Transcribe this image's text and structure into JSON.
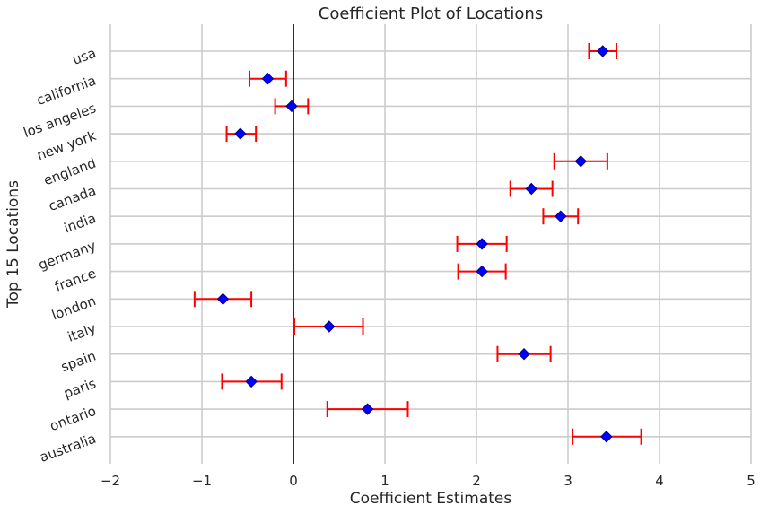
{
  "chart_data": {
    "type": "scatter",
    "title": "Coefficient Plot of Locations",
    "xlabel": "Coefficient Estimates",
    "ylabel": "Top 15 Locations",
    "xlim": [
      -2,
      5
    ],
    "xticks": [
      -2,
      -1,
      0,
      1,
      2,
      3,
      4,
      5
    ],
    "xtick_labels": [
      "−2",
      "−1",
      "0",
      "1",
      "2",
      "3",
      "4",
      "5"
    ],
    "grid": true,
    "reference_line_x": 0,
    "categories": [
      "usa",
      "california",
      "los angeles",
      "new york",
      "england",
      "canada",
      "india",
      "germany",
      "france",
      "london",
      "italy",
      "spain",
      "paris",
      "ontario",
      "australia"
    ],
    "estimates": [
      3.38,
      -0.28,
      -0.02,
      -0.58,
      3.14,
      2.6,
      2.92,
      2.06,
      2.06,
      -0.77,
      0.39,
      2.52,
      -0.46,
      0.81,
      3.42
    ],
    "ci_low": [
      3.23,
      -0.48,
      -0.2,
      -0.73,
      2.85,
      2.37,
      2.73,
      1.79,
      1.8,
      -1.08,
      0.01,
      2.23,
      -0.78,
      0.37,
      3.05
    ],
    "ci_high": [
      3.53,
      -0.08,
      0.16,
      -0.41,
      3.43,
      2.83,
      3.11,
      2.33,
      2.32,
      -0.46,
      0.76,
      2.81,
      -0.13,
      1.25,
      3.8
    ],
    "marker_color": "#0000ff",
    "marker_edge_color": "#000080",
    "errorbar_color": "#ff0000",
    "grid_color": "#cccccc",
    "zero_line_color": "#000000"
  }
}
